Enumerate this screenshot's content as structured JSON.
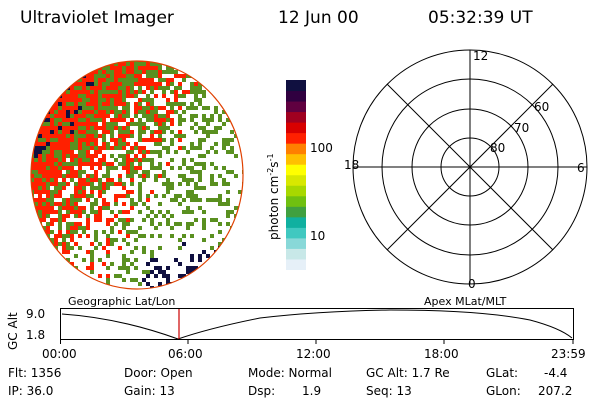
{
  "header": {
    "instrument": "Ultraviolet Imager",
    "date": "12 Jun 00",
    "time": "05:32:39 UT"
  },
  "colorbar": {
    "unit_label": "photon cm",
    "unit_exp1": "-2",
    "unit_s": "s",
    "unit_exp2": "-1",
    "ticks": [
      "100",
      "10"
    ],
    "colors": [
      "#ffffff",
      "#e6f0f8",
      "#c8e8e8",
      "#88d8d8",
      "#40c8c0",
      "#10b0a0",
      "#40a040",
      "#70c010",
      "#a8d800",
      "#d8e800",
      "#ffff00",
      "#ffc000",
      "#ff8000",
      "#ff2000",
      "#d80000",
      "#a00020",
      "#600040",
      "#300040",
      "#101040"
    ]
  },
  "polar": {
    "label_top": "12",
    "label_right": "6",
    "label_bottom": "0",
    "label_left": "18",
    "rings": [
      "60",
      "70",
      "80"
    ]
  },
  "timeline": {
    "left_caption": "Geographic Lat/Lon",
    "right_caption": "Apex MLat/MLT",
    "axis_title": "GC Alt",
    "y_ticks": [
      "9.0",
      "1.8"
    ],
    "x_ticks": [
      "00:00",
      "06:00",
      "12:00",
      "18:00",
      "23:59"
    ],
    "marker_color": "#cc0000"
  },
  "info": {
    "flt": "Flt: 1356",
    "ip": "IP: 36.0",
    "door": "Door: Open",
    "gain": "Gain: 13",
    "mode": "Mode: Normal",
    "dsp_label": "Dsp:",
    "dsp_value": "1.9",
    "gcalt": "GC Alt: 1.7 Re",
    "seq": "Seq: 13",
    "glat_label": "GLat:",
    "glat_value": "-4.4",
    "glon_label": "GLon:",
    "glon_value": "207.2"
  }
}
